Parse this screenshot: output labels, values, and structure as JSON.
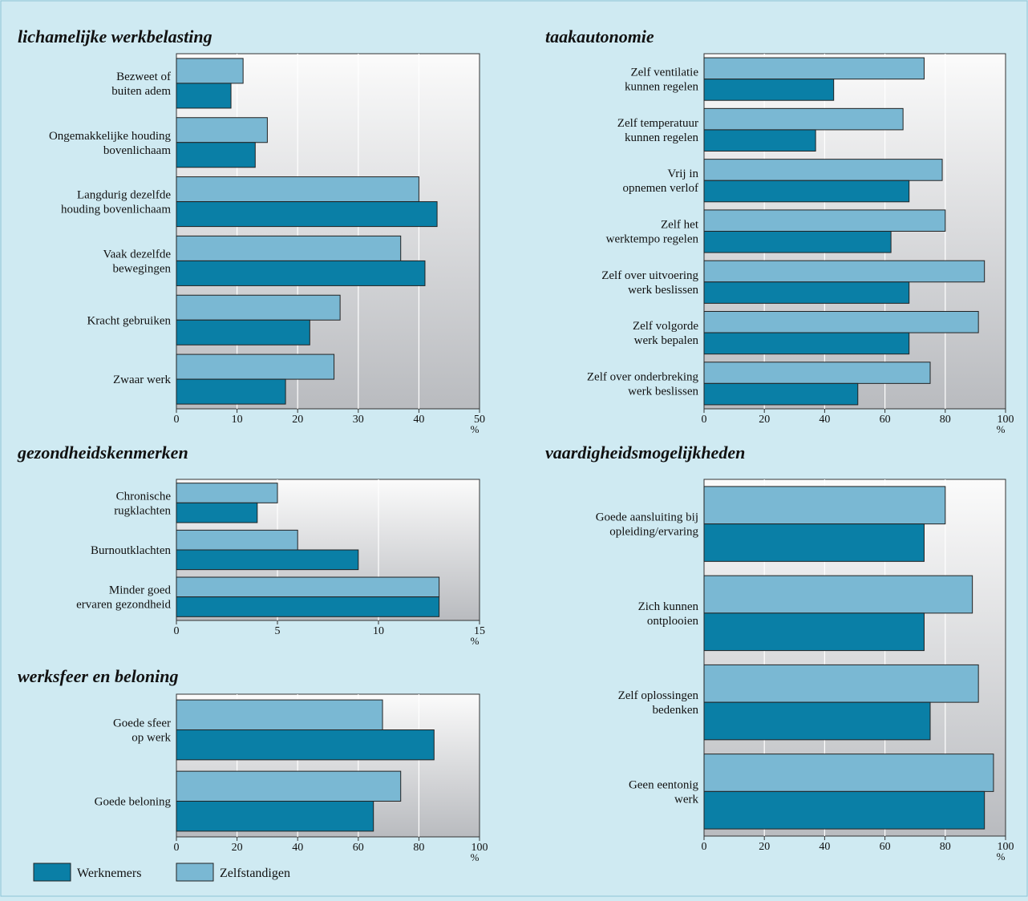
{
  "colors": {
    "background": "#cfeaf2",
    "werknemers": "#0a7fa6",
    "zelfstandigen": "#7ab8d3"
  },
  "legend": [
    {
      "label": "Werknemers",
      "color": "#0a7fa6"
    },
    {
      "label": "Zelfstandigen",
      "color": "#7ab8d3"
    }
  ],
  "chart_data": [
    {
      "type": "bar",
      "orientation": "horizontal",
      "title": "lichamelijke werkbelasting",
      "unit": "%",
      "xlim": [
        0,
        50
      ],
      "ticks": [
        0,
        10,
        20,
        30,
        40,
        50
      ],
      "grid": true,
      "categories": [
        [
          "Bezweet of",
          "buiten adem"
        ],
        [
          "Ongemakkelijke houding",
          "bovenlichaam"
        ],
        [
          "Langdurig dezelfde",
          "houding bovenlichaam"
        ],
        [
          "Vaak dezelfde",
          "bewegingen"
        ],
        [
          "Kracht gebruiken"
        ],
        [
          "Zwaar werk"
        ]
      ],
      "series": [
        {
          "name": "Zelfstandigen",
          "values": [
            11,
            15,
            40,
            37,
            27,
            26
          ]
        },
        {
          "name": "Werknemers",
          "values": [
            9,
            13,
            43,
            41,
            22,
            18
          ]
        }
      ]
    },
    {
      "type": "bar",
      "orientation": "horizontal",
      "title": "taakautonomie",
      "unit": "%",
      "xlim": [
        0,
        100
      ],
      "ticks": [
        0,
        20,
        40,
        60,
        80,
        100
      ],
      "grid": true,
      "categories": [
        [
          "Zelf ventilatie",
          "kunnen regelen"
        ],
        [
          "Zelf temperatuur",
          "kunnen regelen"
        ],
        [
          "Vrij in",
          "opnemen verlof"
        ],
        [
          "Zelf het",
          "werktempo regelen"
        ],
        [
          "Zelf over uitvoering",
          "werk beslissen"
        ],
        [
          "Zelf volgorde",
          "werk bepalen"
        ],
        [
          "Zelf over onderbreking",
          "werk beslissen"
        ]
      ],
      "series": [
        {
          "name": "Zelfstandigen",
          "values": [
            73,
            66,
            79,
            80,
            93,
            91,
            75
          ]
        },
        {
          "name": "Werknemers",
          "values": [
            43,
            37,
            68,
            62,
            68,
            68,
            51
          ]
        }
      ]
    },
    {
      "type": "bar",
      "orientation": "horizontal",
      "title": "gezondheidskenmerken",
      "unit": "%",
      "xlim": [
        0,
        15
      ],
      "ticks": [
        0,
        5,
        10,
        15
      ],
      "grid": true,
      "categories": [
        [
          "Chronische",
          "rugklachten"
        ],
        [
          "Burnoutklachten"
        ],
        [
          "Minder goed",
          "ervaren gezondheid"
        ]
      ],
      "series": [
        {
          "name": "Zelfstandigen",
          "values": [
            5,
            6,
            13
          ]
        },
        {
          "name": "Werknemers",
          "values": [
            4,
            9,
            13
          ]
        }
      ]
    },
    {
      "type": "bar",
      "orientation": "horizontal",
      "title": "vaardigheidsmogelijkheden",
      "unit": "%",
      "xlim": [
        0,
        100
      ],
      "ticks": [
        0,
        20,
        40,
        60,
        80,
        100
      ],
      "grid": true,
      "categories": [
        [
          "Goede aansluiting bij",
          "opleiding/ervaring"
        ],
        [
          "Zich kunnen",
          "ontplooien"
        ],
        [
          "Zelf oplossingen",
          "bedenken"
        ],
        [
          "Geen eentonig",
          "werk"
        ]
      ],
      "series": [
        {
          "name": "Zelfstandigen",
          "values": [
            80,
            89,
            91,
            96
          ]
        },
        {
          "name": "Werknemers",
          "values": [
            73,
            73,
            75,
            93
          ]
        }
      ]
    },
    {
      "type": "bar",
      "orientation": "horizontal",
      "title": "werksfeer en beloning",
      "unit": "%",
      "xlim": [
        0,
        100
      ],
      "ticks": [
        0,
        20,
        40,
        60,
        80,
        100
      ],
      "grid": true,
      "categories": [
        [
          "Goede sfeer",
          "op werk"
        ],
        [
          "Goede beloning"
        ]
      ],
      "series": [
        {
          "name": "Zelfstandigen",
          "values": [
            68,
            74
          ]
        },
        {
          "name": "Werknemers",
          "values": [
            85,
            65
          ]
        }
      ]
    }
  ]
}
